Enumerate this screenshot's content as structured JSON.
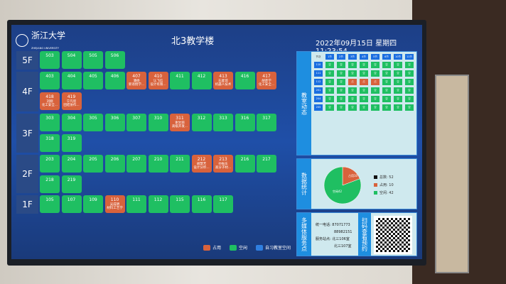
{
  "header": {
    "logo_text": "浙江大学",
    "logo_sub": "ZHEJIANG UNIVERSITY",
    "title": "北3教学楼",
    "datetime": "2022年09月15日 星期四 11:23:54"
  },
  "colors": {
    "free": "#1fbf62",
    "busy": "#d8623c",
    "self_study": "#2f7fe0"
  },
  "floors": [
    {
      "label": "5F",
      "rooms": [
        {
          "n": "503"
        },
        {
          "n": "504"
        },
        {
          "n": "505"
        },
        {
          "n": "506"
        }
      ]
    },
    {
      "label": "4F",
      "rooms": [
        {
          "n": "403"
        },
        {
          "n": "404"
        },
        {
          "n": "405"
        },
        {
          "n": "406"
        },
        {
          "n": "407",
          "busy": true,
          "t": "潘杨",
          "c": "新语授学..."
        },
        {
          "n": "410",
          "busy": true,
          "t": "认飞信",
          "c": "设计有限..."
        },
        {
          "n": "411"
        },
        {
          "n": "412"
        },
        {
          "n": "413",
          "busy": true,
          "t": "石麦琼",
          "c": "机器人技术"
        },
        {
          "n": "416"
        },
        {
          "n": "417",
          "busy": true,
          "t": "胡彦学",
          "c": "化工安全..."
        },
        {
          "n": "418",
          "busy": true,
          "t": "刘刚",
          "c": "化工安全..."
        },
        {
          "n": "419",
          "busy": true,
          "t": "宁凡欣",
          "c": "团结协作..."
        }
      ]
    },
    {
      "label": "3F",
      "rooms": [
        {
          "n": "303"
        },
        {
          "n": "304"
        },
        {
          "n": "305"
        },
        {
          "n": "306"
        },
        {
          "n": "307"
        },
        {
          "n": "310"
        },
        {
          "n": "311",
          "busy": true,
          "t": "谢文丽",
          "c": "高级开发..."
        },
        {
          "n": "312"
        },
        {
          "n": "313"
        },
        {
          "n": "316"
        },
        {
          "n": "317"
        },
        {
          "n": "318"
        },
        {
          "n": "319"
        }
      ]
    },
    {
      "label": "2F",
      "rooms": [
        {
          "n": "203"
        },
        {
          "n": "204"
        },
        {
          "n": "205"
        },
        {
          "n": "206"
        },
        {
          "n": "207"
        },
        {
          "n": "210"
        },
        {
          "n": "211"
        },
        {
          "n": "212",
          "busy": true,
          "t": "胡慧芳",
          "c": "设计分析..."
        },
        {
          "n": "213",
          "busy": true,
          "t": "孙振东",
          "c": "高分子材..."
        },
        {
          "n": "216"
        },
        {
          "n": "217"
        },
        {
          "n": "218"
        },
        {
          "n": "219"
        }
      ]
    },
    {
      "label": "1F",
      "rooms": [
        {
          "n": "105"
        },
        {
          "n": "107"
        },
        {
          "n": "109"
        },
        {
          "n": "110",
          "busy": true,
          "t": "吴成明",
          "c": "材料工艺学"
        },
        {
          "n": "111"
        },
        {
          "n": "112"
        },
        {
          "n": "115"
        },
        {
          "n": "116"
        },
        {
          "n": "117"
        }
      ]
    }
  ],
  "dynamics": {
    "label": "教室动态",
    "corner_top": "节次",
    "corner_bottom": "教室",
    "periods": [
      "1节",
      "2节",
      "3节",
      "4节",
      "5节",
      "6节",
      "10节",
      "11节"
    ],
    "rooms": [
      "110",
      "111",
      "112",
      "201",
      "204",
      "205"
    ],
    "cells_free": "空",
    "cells_busy": "占",
    "busy": [
      [
        2,
        2
      ],
      [
        2,
        3
      ],
      [
        2,
        4
      ]
    ]
  },
  "stats": {
    "label": "数据统计",
    "total_label": "总数: 52",
    "busy_label": "占用: 10",
    "free_label": "空闲: 42",
    "total": 52,
    "busy": 10,
    "free": 42,
    "pie_busy_text": "占用10",
    "pie_free_text": "空闲42"
  },
  "service": {
    "label": "多媒体服务点",
    "phone_label": "统一电话:",
    "phone1": "87071773",
    "phone2": "88982151",
    "site_label": "服务站点:",
    "site1": "北三106室",
    "site2": "北三107室",
    "qr_label": "扫码查看预约"
  },
  "legend": {
    "busy": "占用",
    "free": "空闲",
    "self_study": "自习教室空间"
  }
}
